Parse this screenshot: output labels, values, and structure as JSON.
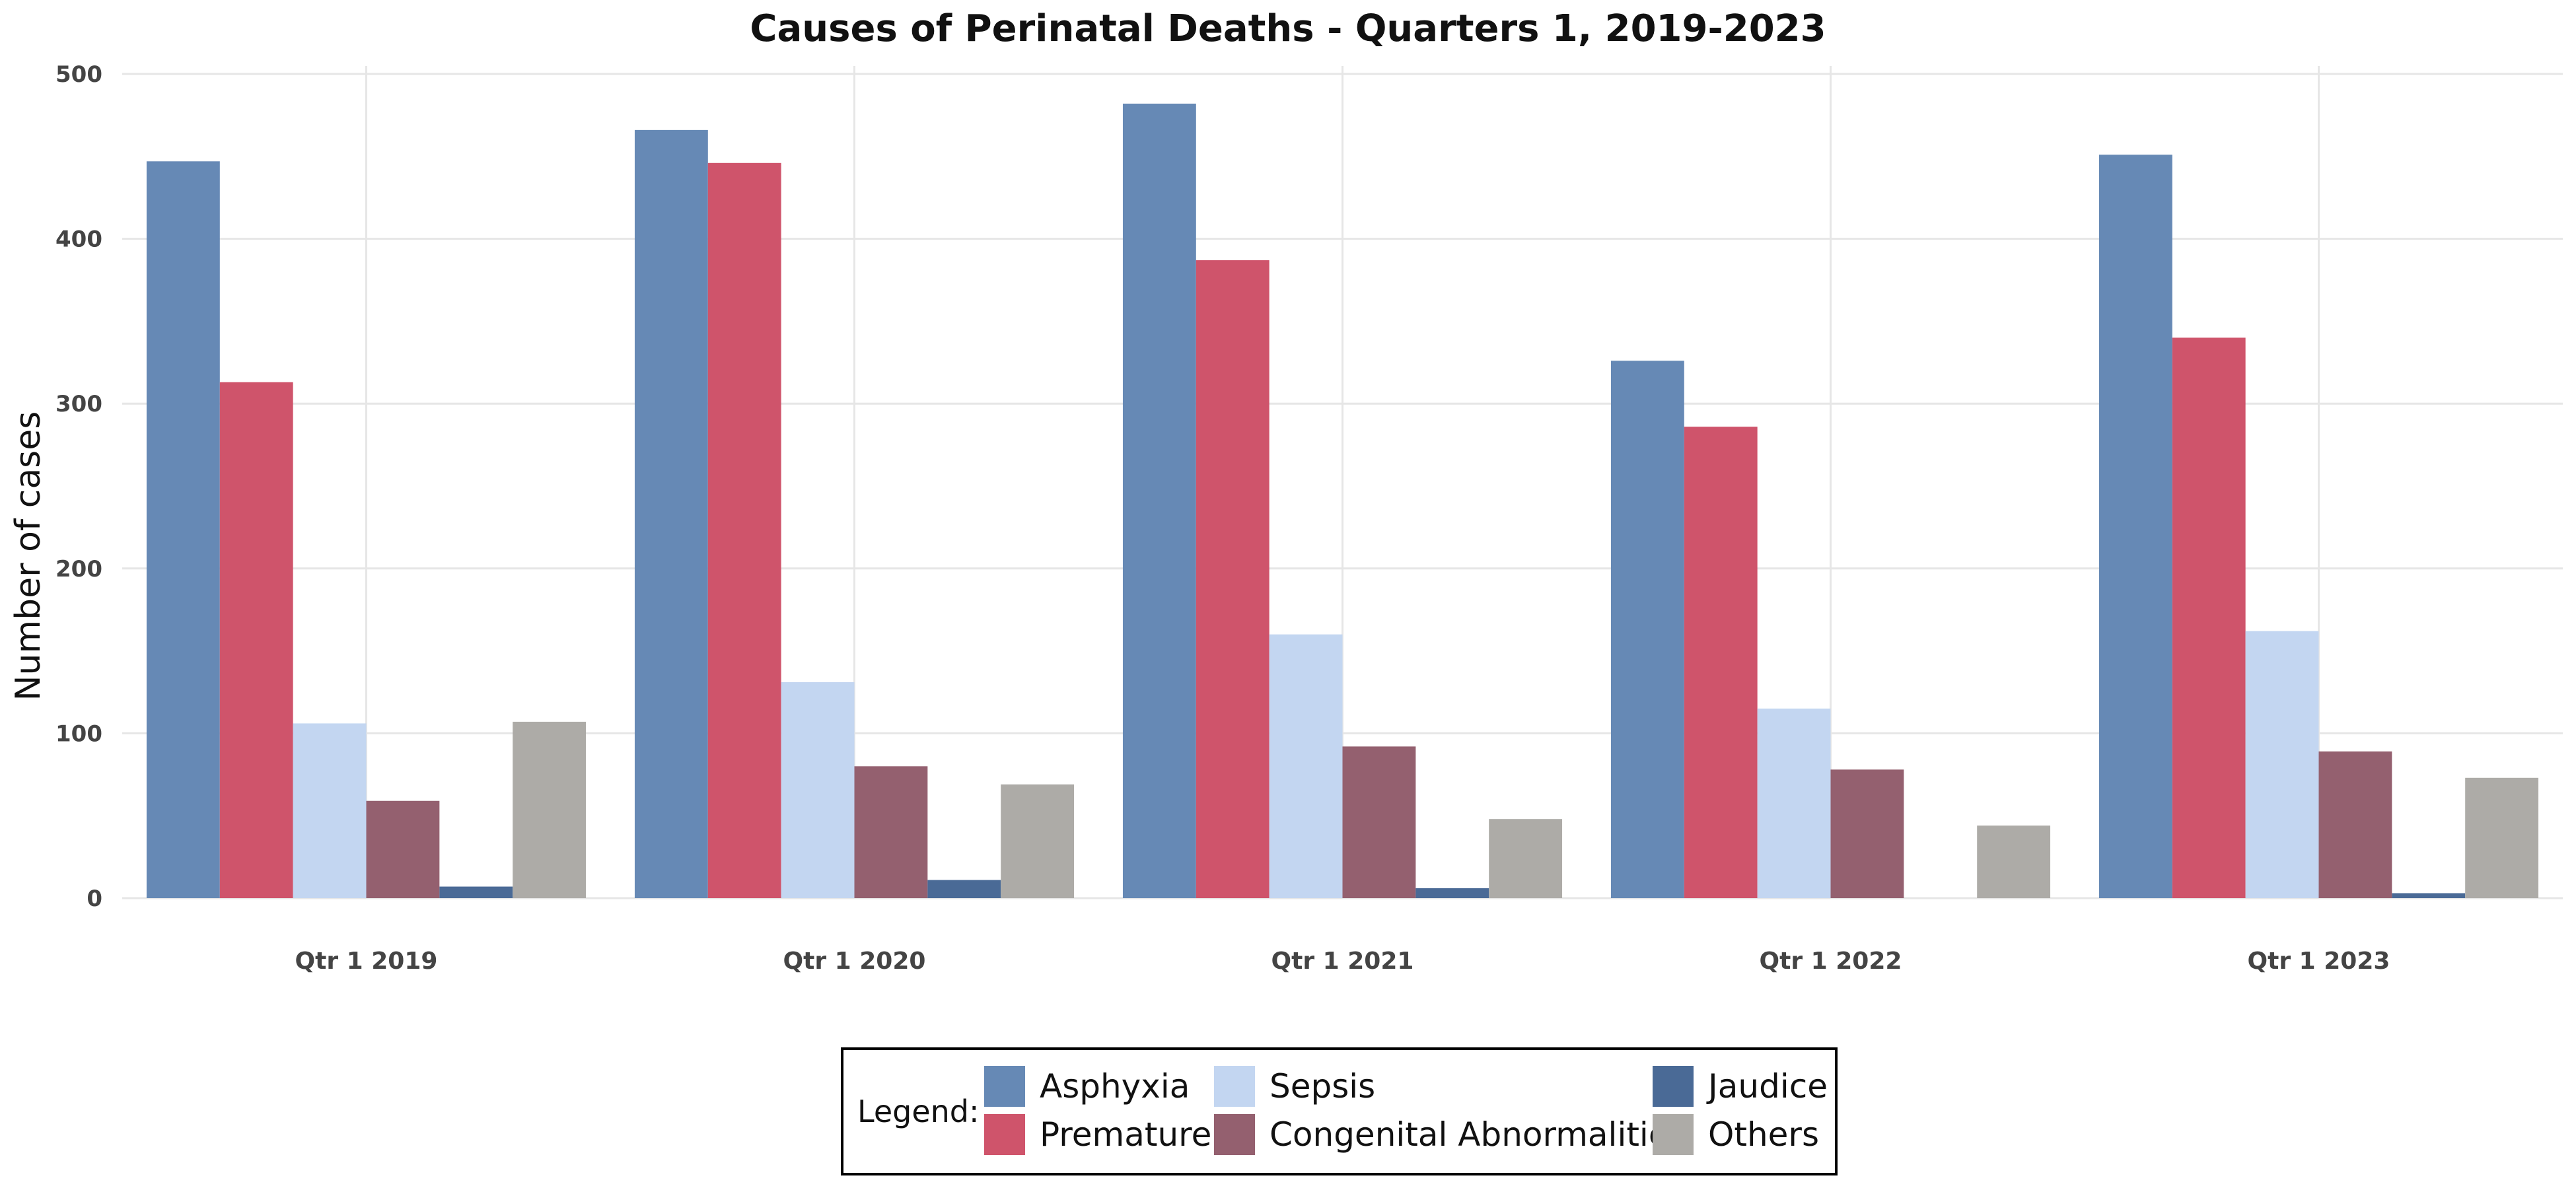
{
  "chart_data": {
    "type": "bar",
    "title": "Causes of Perinatal Deaths - Quarters 1, 2019-2023",
    "xlabel": "",
    "ylabel": "Number of cases",
    "ylim": [
      0,
      500
    ],
    "yticks": [
      0,
      100,
      200,
      300,
      400,
      500
    ],
    "grid": true,
    "legend_position": "bottom",
    "legend_title": "Legend:",
    "categories": [
      "Qtr 1 2019",
      "Qtr 1 2020",
      "Qtr 1 2021",
      "Qtr 1 2022",
      "Qtr 1 2023"
    ],
    "series": [
      {
        "name": "Asphyxia",
        "color": "#6689b5",
        "values": [
          447,
          466,
          482,
          326,
          451
        ]
      },
      {
        "name": "Premature",
        "color": "#cf546b",
        "values": [
          313,
          446,
          387,
          286,
          340
        ]
      },
      {
        "name": "Sepsis",
        "color": "#c3d6f1",
        "values": [
          106,
          131,
          160,
          115,
          162
        ]
      },
      {
        "name": "Congenital Abnormalities",
        "color": "#94606f",
        "values": [
          59,
          80,
          92,
          78,
          89
        ]
      },
      {
        "name": "Jaudice",
        "color": "#4a6a96",
        "values": [
          7,
          11,
          6,
          0,
          3
        ]
      },
      {
        "name": "Others",
        "color": "#adaba7",
        "values": [
          107,
          69,
          48,
          44,
          73
        ]
      }
    ],
    "legend_layout": [
      [
        "Asphyxia",
        "Sepsis",
        "Jaudice"
      ],
      [
        "Premature",
        "Congenital Abnormalities",
        "Others"
      ]
    ]
  }
}
